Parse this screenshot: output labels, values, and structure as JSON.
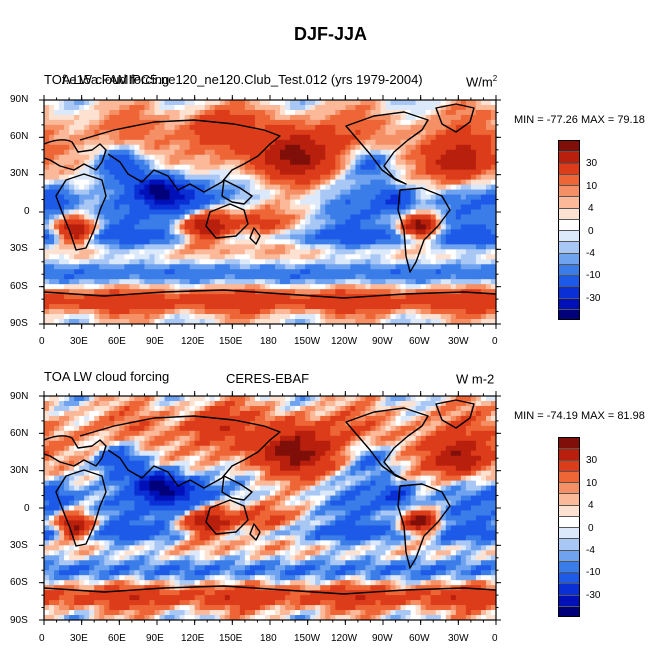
{
  "figure": {
    "title": "DJF-JJA"
  },
  "palette": [
    "#00007a",
    "#0010b8",
    "#0a2fd4",
    "#1e5ae8",
    "#3b7de8",
    "#6fa3f0",
    "#a8c7f5",
    "#dce9fb",
    "#ffffff",
    "#fde2d2",
    "#fbb999",
    "#f59066",
    "#ee6536",
    "#dd3c1a",
    "#b81f0d",
    "#7f0f08"
  ],
  "legend_labels": [
    "30",
    "10",
    "4",
    "0",
    "-4",
    "-10",
    "-30"
  ],
  "x_ticks": [
    "0",
    "30E",
    "60E",
    "90E",
    "120E",
    "150E",
    "180",
    "150W",
    "120W",
    "90W",
    "60W",
    "30W",
    "0"
  ],
  "y_ticks": [
    "90N",
    "60N",
    "30N",
    "0",
    "30S",
    "60S",
    "90S"
  ],
  "panels": [
    {
      "id": "model",
      "left_title": "TOA LW cloud forcing",
      "center_title": "f.e15a.FAMIPC5.ne120_ne120.Club_Test.012 (yrs 1979-2004)",
      "units_main": "W/m",
      "units_sup": "2",
      "stats": "MIN = -77.26 MAX =  79.18"
    },
    {
      "id": "obs",
      "left_title": "TOA LW cloud forcing",
      "center_title": "CERES-EBAF",
      "units_main": "W m-2",
      "units_sup": "",
      "stats": "MIN = -74.19 MAX =  81.98"
    }
  ]
}
